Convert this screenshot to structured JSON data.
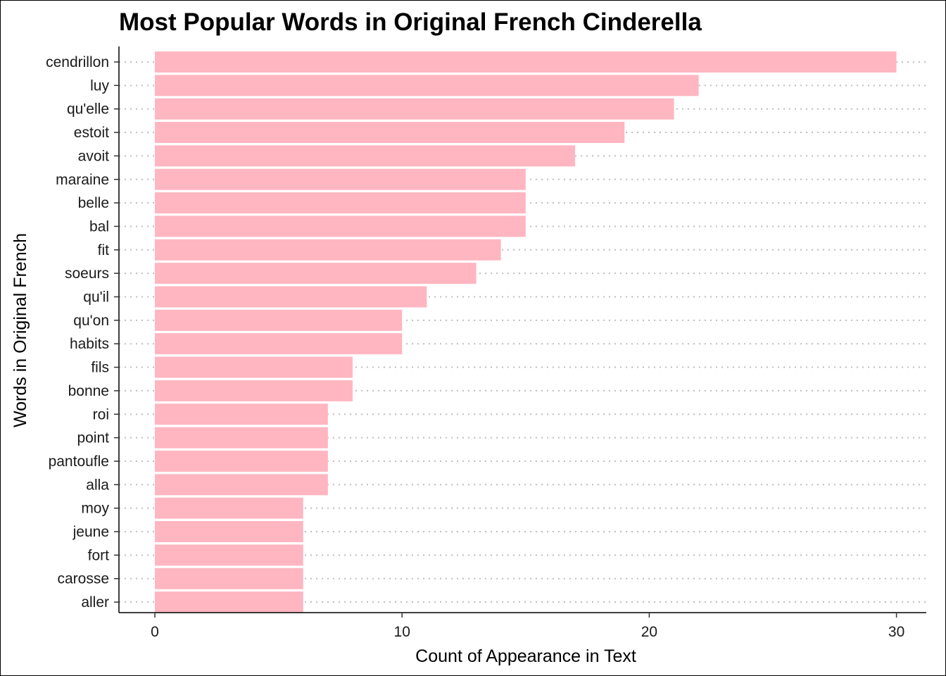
{
  "chart_data": {
    "type": "bar",
    "orientation": "horizontal",
    "title": "Most Popular Words in Original French Cinderella",
    "xlabel": "Count of Appearance in Text",
    "ylabel": "Words in Original French",
    "xlim": [
      0,
      31
    ],
    "x_ticks": [
      0,
      10,
      20,
      30
    ],
    "grid": "dotted horizontal major lines",
    "legend": "none",
    "bar_color": "#FFB6C1",
    "categories": [
      "cendrillon",
      "luy",
      "qu'elle",
      "estoit",
      "avoit",
      "maraine",
      "belle",
      "bal",
      "fit",
      "soeurs",
      "qu'il",
      "qu'on",
      "habits",
      "fils",
      "bonne",
      "roi",
      "point",
      "pantoufle",
      "alla",
      "moy",
      "jeune",
      "fort",
      "carosse",
      "aller"
    ],
    "values": [
      30,
      22,
      21,
      19,
      17,
      15,
      15,
      15,
      14,
      13,
      11,
      10,
      10,
      8,
      8,
      7,
      7,
      7,
      7,
      6,
      6,
      6,
      6,
      6
    ]
  }
}
